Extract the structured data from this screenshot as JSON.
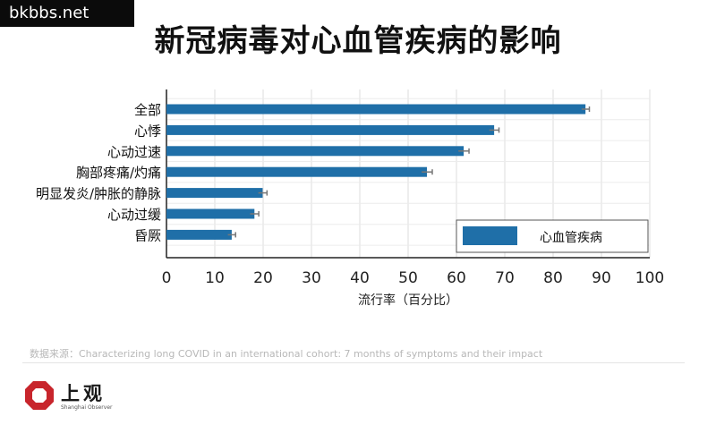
{
  "watermark": "bkbbs.net",
  "title": "新冠病毒对心血管疾病的影响",
  "source": "数据来源：Characterizing long COVID in an international cohort: 7 months of symptoms and their impact",
  "logo": {
    "name": "上观",
    "sub": "Shanghai Observer"
  },
  "colors": {
    "bar": "#1f6fa8",
    "grid": "#dcdcdc",
    "axis": "#222222",
    "error": "#777777"
  },
  "chart_data": {
    "type": "bar",
    "orientation": "horizontal",
    "title": "新冠病毒对心血管疾病的影响",
    "xlabel": "流行率（百分比）",
    "ylabel": "",
    "xlim": [
      0,
      100
    ],
    "xticks": [
      "0",
      "10",
      "20",
      "30",
      "40",
      "50",
      "60",
      "70",
      "80",
      "90",
      "100"
    ],
    "grid": true,
    "legend_position": "bottom-right",
    "categories": [
      "全部",
      "心悸",
      "心动过速",
      "胸部疼痛/灼痛",
      "明显发炎/肿胀的静脉",
      "心动过缓",
      "昏厥"
    ],
    "series": [
      {
        "name": "心血管疾病",
        "values": [
          86.7,
          67.8,
          61.5,
          53.9,
          19.9,
          18.2,
          13.5
        ],
        "error": [
          0.8,
          1.0,
          1.1,
          1.1,
          0.9,
          0.9,
          0.8
        ]
      }
    ]
  }
}
